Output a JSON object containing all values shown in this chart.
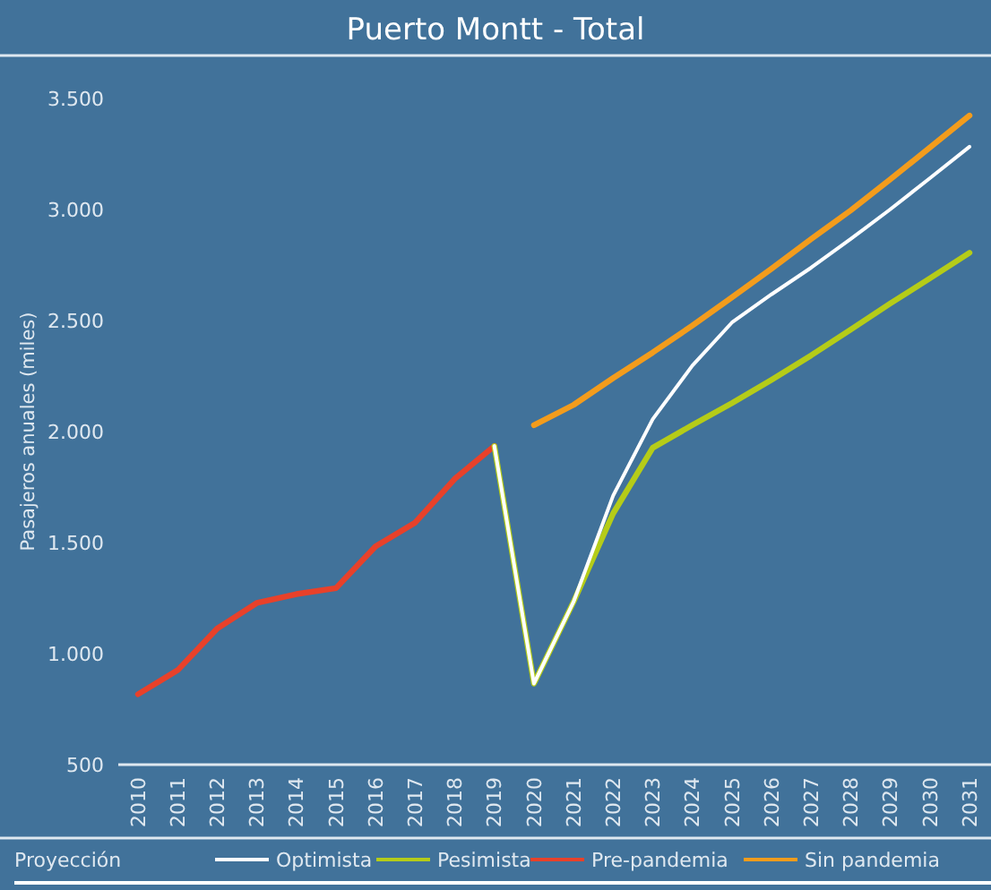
{
  "chart_data": {
    "type": "line",
    "title": "Puerto Montt - Total",
    "ylabel": "Pasajeros anuales (miles)",
    "legend_title": "Proyección",
    "legend": "bottom",
    "grid": false,
    "line_style": "solid",
    "marker": "none",
    "categories": [
      "2010",
      "2011",
      "2012",
      "2013",
      "2014",
      "2015",
      "2016",
      "2017",
      "2018",
      "2019",
      "2020",
      "2021",
      "2022",
      "2023",
      "2024",
      "2025",
      "2026",
      "2027",
      "2028",
      "2029",
      "2030",
      "2031"
    ],
    "ylim": [
      500,
      3500
    ],
    "yticks": [
      {
        "value": 500,
        "label": "500"
      },
      {
        "value": 1000,
        "label": "1.000"
      },
      {
        "value": 1500,
        "label": "1.500"
      },
      {
        "value": 2000,
        "label": "2.000"
      },
      {
        "value": 2500,
        "label": "2.500"
      },
      {
        "value": 3000,
        "label": "3.000"
      },
      {
        "value": 3500,
        "label": "3.500"
      }
    ],
    "series": [
      {
        "name": "Optimista",
        "color": "#ffffff",
        "values": [
          null,
          null,
          null,
          null,
          null,
          null,
          null,
          null,
          null,
          1935,
          865,
          1233,
          1711,
          2056,
          2297,
          2491,
          2618,
          2738,
          2867,
          3001,
          3141,
          3283
        ]
      },
      {
        "name": "Pesimista",
        "color": "#b5cc18",
        "values": [
          null,
          null,
          null,
          null,
          null,
          null,
          null,
          null,
          null,
          1935,
          865,
          1233,
          1631,
          1927,
          2029,
          2128,
          2233,
          2343,
          2459,
          2577,
          2690,
          2805
        ]
      },
      {
        "name": "Pre-pandemia",
        "color": "#e8412a",
        "values": [
          817,
          925,
          1113,
          1228,
          1268,
          1295,
          1483,
          1590,
          1787,
          1935,
          null,
          null,
          null,
          null,
          null,
          null,
          null,
          null,
          null,
          null,
          null,
          null
        ]
      },
      {
        "name": "Sin pandemia",
        "color": "#f39c1c",
        "values": [
          null,
          null,
          null,
          null,
          null,
          null,
          null,
          null,
          null,
          null,
          2029,
          2120,
          2241,
          2356,
          2477,
          2604,
          2733,
          2867,
          2996,
          3136,
          3279,
          3423
        ]
      }
    ]
  }
}
